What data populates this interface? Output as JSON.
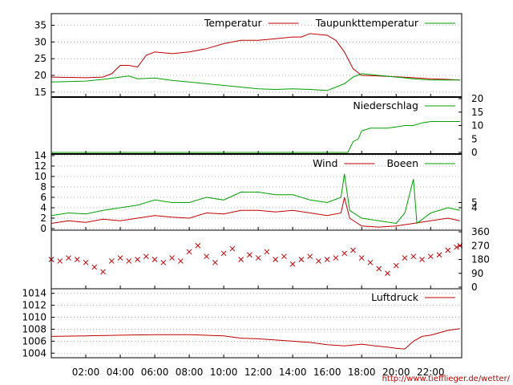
{
  "chart_data": [
    {
      "type": "line",
      "series": [
        {
          "name": "Temperatur",
          "color": "#c00000",
          "points": [
            [
              0,
              19.5
            ],
            [
              2,
              19.3
            ],
            [
              3,
              19.5
            ],
            [
              3.5,
              20.5
            ],
            [
              4,
              23
            ],
            [
              4.5,
              23
            ],
            [
              5,
              22.5
            ],
            [
              5.5,
              26
            ],
            [
              6,
              27
            ],
            [
              7,
              26.5
            ],
            [
              8,
              27
            ],
            [
              9,
              28
            ],
            [
              10,
              29.5
            ],
            [
              11,
              30.5
            ],
            [
              12,
              30.5
            ],
            [
              13,
              31
            ],
            [
              14,
              31.5
            ],
            [
              14.5,
              31.5
            ],
            [
              15,
              32.5
            ],
            [
              16,
              32
            ],
            [
              16.5,
              30.5
            ],
            [
              17,
              27
            ],
            [
              17.5,
              22
            ],
            [
              18,
              20
            ],
            [
              19,
              19.8
            ],
            [
              20,
              19.6
            ],
            [
              21,
              19.3
            ],
            [
              22,
              19
            ],
            [
              23,
              18.8
            ],
            [
              23.7,
              18.6
            ]
          ]
        },
        {
          "name": "Taupunkttemperatur",
          "color": "#00a000",
          "points": [
            [
              0,
              18
            ],
            [
              2,
              18.3
            ],
            [
              3,
              18.8
            ],
            [
              4,
              19.5
            ],
            [
              4.5,
              19.8
            ],
            [
              5,
              19
            ],
            [
              6,
              19.2
            ],
            [
              7,
              18.5
            ],
            [
              8,
              18
            ],
            [
              9,
              17.5
            ],
            [
              10,
              17
            ],
            [
              11,
              16.5
            ],
            [
              12,
              16
            ],
            [
              13,
              15.8
            ],
            [
              14,
              16
            ],
            [
              15,
              15.8
            ],
            [
              16,
              15.5
            ],
            [
              16.5,
              16.5
            ],
            [
              17,
              17.5
            ],
            [
              17.5,
              19.5
            ],
            [
              18,
              20.5
            ],
            [
              19,
              20
            ],
            [
              20,
              19.5
            ],
            [
              21,
              19
            ],
            [
              22,
              18.6
            ],
            [
              23,
              18.6
            ],
            [
              23.7,
              18.6
            ]
          ]
        }
      ],
      "y_ticks": [
        15,
        20,
        25,
        30,
        35
      ],
      "ylim": [
        14,
        38
      ]
    },
    {
      "type": "line",
      "series": [
        {
          "name": "Niederschlag",
          "color": "#00a000",
          "points": [
            [
              0,
              0
            ],
            [
              17.2,
              0
            ],
            [
              17.5,
              4
            ],
            [
              17.8,
              5
            ],
            [
              18,
              8
            ],
            [
              18.5,
              9
            ],
            [
              19.5,
              9
            ],
            [
              20,
              9.5
            ],
            [
              20.5,
              10
            ],
            [
              21,
              10
            ],
            [
              21.5,
              11
            ],
            [
              22,
              11.5
            ],
            [
              23,
              11.5
            ],
            [
              23.7,
              11.5
            ]
          ]
        }
      ],
      "y_ticks_right": [
        0,
        5,
        10,
        15,
        20
      ],
      "ylim": [
        0,
        20
      ]
    },
    {
      "type": "line",
      "series": [
        {
          "name": "Wind",
          "color": "#c00000",
          "points": [
            [
              0,
              1
            ],
            [
              1,
              1.5
            ],
            [
              2,
              1.2
            ],
            [
              3,
              1.8
            ],
            [
              4,
              1.5
            ],
            [
              5,
              2
            ],
            [
              6,
              2.5
            ],
            [
              7,
              2.2
            ],
            [
              8,
              2
            ],
            [
              9,
              3
            ],
            [
              10,
              2.8
            ],
            [
              11,
              3.5
            ],
            [
              12,
              3.5
            ],
            [
              13,
              3.2
            ],
            [
              14,
              3.5
            ],
            [
              15,
              3
            ],
            [
              16,
              2.5
            ],
            [
              16.8,
              3
            ],
            [
              17,
              6
            ],
            [
              17.3,
              2
            ],
            [
              18,
              0.5
            ],
            [
              19,
              0.3
            ],
            [
              20,
              0.5
            ],
            [
              21,
              1
            ],
            [
              22,
              1.5
            ],
            [
              23,
              2
            ],
            [
              23.7,
              1.5
            ]
          ]
        },
        {
          "name": "Boeen",
          "color": "#00a000",
          "points": [
            [
              0,
              2.5
            ],
            [
              1,
              3
            ],
            [
              2,
              2.8
            ],
            [
              3,
              3.5
            ],
            [
              4,
              4
            ],
            [
              5,
              4.5
            ],
            [
              6,
              5.5
            ],
            [
              7,
              5
            ],
            [
              8,
              5
            ],
            [
              9,
              6
            ],
            [
              10,
              5.5
            ],
            [
              11,
              7
            ],
            [
              12,
              7
            ],
            [
              13,
              6.5
            ],
            [
              14,
              6.5
            ],
            [
              15,
              5.5
            ],
            [
              16,
              5
            ],
            [
              16.8,
              6
            ],
            [
              17,
              10.5
            ],
            [
              17.3,
              3.5
            ],
            [
              18,
              2
            ],
            [
              19,
              1.5
            ],
            [
              20,
              1
            ],
            [
              20.5,
              3
            ],
            [
              21,
              9.5
            ],
            [
              21.2,
              1
            ],
            [
              22,
              3
            ],
            [
              23,
              4
            ],
            [
              23.7,
              3.5
            ]
          ]
        }
      ],
      "y_ticks": [
        0,
        2,
        4,
        6,
        8,
        10,
        12,
        14
      ],
      "y_ticks_right": [
        4,
        5
      ],
      "ylim": [
        0,
        14
      ]
    },
    {
      "type": "scatter",
      "series": [
        {
          "color": "#c00000",
          "points": [
            [
              0,
              180
            ],
            [
              0.5,
              170
            ],
            [
              1,
              190
            ],
            [
              1.5,
              180
            ],
            [
              2,
              160
            ],
            [
              2.5,
              130
            ],
            [
              3,
              100
            ],
            [
              3.5,
              170
            ],
            [
              4,
              190
            ],
            [
              4.5,
              170
            ],
            [
              5,
              180
            ],
            [
              5.5,
              200
            ],
            [
              6,
              180
            ],
            [
              6.5,
              160
            ],
            [
              7,
              190
            ],
            [
              7.5,
              170
            ],
            [
              8,
              230
            ],
            [
              8.5,
              270
            ],
            [
              9,
              200
            ],
            [
              9.5,
              160
            ],
            [
              10,
              220
            ],
            [
              10.5,
              250
            ],
            [
              11,
              180
            ],
            [
              11.5,
              210
            ],
            [
              12,
              190
            ],
            [
              12.5,
              230
            ],
            [
              13,
              180
            ],
            [
              13.5,
              200
            ],
            [
              14,
              150
            ],
            [
              14.5,
              180
            ],
            [
              15,
              200
            ],
            [
              15.5,
              170
            ],
            [
              16,
              180
            ],
            [
              16.5,
              190
            ],
            [
              17,
              220
            ],
            [
              17.5,
              240
            ],
            [
              18,
              190
            ],
            [
              18.5,
              160
            ],
            [
              19,
              120
            ],
            [
              19.5,
              90
            ],
            [
              20,
              140
            ],
            [
              20.5,
              190
            ],
            [
              21,
              200
            ],
            [
              21.5,
              180
            ],
            [
              22,
              200
            ],
            [
              22.5,
              210
            ],
            [
              23,
              240
            ],
            [
              23.5,
              260
            ],
            [
              23.7,
              270
            ]
          ]
        }
      ],
      "y_ticks_right": [
        0,
        90,
        180,
        270,
        360
      ],
      "ylim": [
        0,
        360
      ]
    },
    {
      "type": "line",
      "series": [
        {
          "name": "Luftdruck",
          "color": "#c00000",
          "points": [
            [
              0,
              1006.8
            ],
            [
              2,
              1006.9
            ],
            [
              4,
              1007
            ],
            [
              6,
              1007.1
            ],
            [
              8,
              1007.1
            ],
            [
              10,
              1006.9
            ],
            [
              11,
              1006.5
            ],
            [
              12,
              1006.4
            ],
            [
              13,
              1006.2
            ],
            [
              14,
              1006
            ],
            [
              15,
              1005.8
            ],
            [
              16,
              1005.4
            ],
            [
              17,
              1005.2
            ],
            [
              18,
              1005.5
            ],
            [
              18.8,
              1005.2
            ],
            [
              19.5,
              1005
            ],
            [
              20,
              1004.8
            ],
            [
              20.5,
              1004.7
            ],
            [
              21,
              1006
            ],
            [
              21.5,
              1006.8
            ],
            [
              22,
              1007
            ],
            [
              22.5,
              1007.4
            ],
            [
              23,
              1007.8
            ],
            [
              23.7,
              1008.1
            ]
          ]
        }
      ],
      "y_ticks": [
        1004,
        1006,
        1008,
        1010,
        1012,
        1014
      ],
      "ylim": [
        1003.5,
        1014.5
      ]
    }
  ],
  "x_ticks": [
    "02:00",
    "04:00",
    "06:00",
    "08:00",
    "10:00",
    "12:00",
    "14:00",
    "16:00",
    "18:00",
    "20:00",
    "22:00"
  ],
  "credit": "http://www.tiefflieger.de/wetter/"
}
